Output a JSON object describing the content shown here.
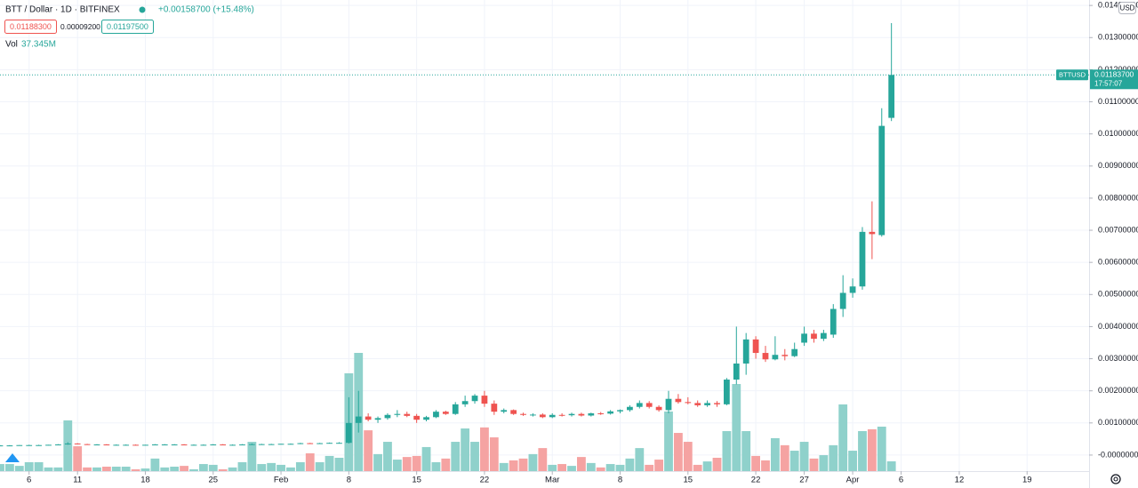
{
  "header": {
    "symbol": "BTT / Dollar · 1D · BITFINEX",
    "change": "+0.00158700 (+15.48%)",
    "bid": "0.01188300",
    "spread": "0.00009200",
    "ask": "0.01197500",
    "volume_label": "Vol",
    "volume_value": "37.345M",
    "currency": "USD"
  },
  "chart_data": {
    "type": "candlestick",
    "up_color": "#26a69a",
    "down_color": "#ef5350",
    "volume_up_color": "#8fd1cb",
    "volume_down_color": "#f5a3a2",
    "grid": true,
    "x": [
      3,
      4,
      5,
      6,
      7,
      8,
      9,
      10,
      11,
      12,
      13,
      14,
      15,
      16,
      17,
      18,
      19,
      20,
      21,
      22,
      23,
      24,
      25,
      26,
      27,
      28,
      29,
      30,
      31,
      32,
      33,
      34,
      35,
      36,
      37,
      38,
      39,
      40,
      41,
      42,
      43,
      44,
      45,
      46,
      47,
      48,
      49,
      50,
      51,
      52,
      53,
      54,
      55,
      56,
      57,
      58,
      59,
      60,
      61,
      62,
      63,
      64,
      65,
      66,
      67,
      68,
      69,
      70,
      71,
      72,
      73,
      74,
      75,
      76,
      77,
      78,
      79,
      80,
      81,
      82,
      83,
      84,
      85,
      86,
      87,
      88,
      89,
      90,
      91,
      92,
      93,
      94,
      95
    ],
    "series": [
      {
        "name": "BTTUSD",
        "open": [
          0.00029,
          0.0003,
          0.0003,
          0.00031,
          0.00031,
          0.00031,
          0.00032,
          0.00033,
          0.00036,
          0.00034,
          0.00033,
          0.00033,
          0.00032,
          0.00032,
          0.00032,
          0.00031,
          0.00032,
          0.00033,
          0.00033,
          0.00033,
          0.00032,
          0.00032,
          0.00032,
          0.00033,
          0.00032,
          0.00032,
          0.00033,
          0.00034,
          0.00034,
          0.00034,
          0.00035,
          0.00035,
          0.00037,
          0.00036,
          0.00037,
          0.00038,
          0.00038,
          0.001,
          0.0012,
          0.0011,
          0.00115,
          0.00125,
          0.00128,
          0.00122,
          0.0011,
          0.00118,
          0.00135,
          0.00128,
          0.00158,
          0.00168,
          0.00185,
          0.0016,
          0.00135,
          0.0014,
          0.00128,
          0.00125,
          0.00126,
          0.00118,
          0.00125,
          0.00124,
          0.00128,
          0.00123,
          0.0013,
          0.00129,
          0.00136,
          0.0014,
          0.0015,
          0.00162,
          0.0015,
          0.0014,
          0.00175,
          0.00165,
          0.00162,
          0.00155,
          0.00162,
          0.00158,
          0.00235,
          0.00285,
          0.0036,
          0.00318,
          0.00298,
          0.00312,
          0.00308,
          0.0035,
          0.00378,
          0.00362,
          0.00375,
          0.00455,
          0.00505,
          0.00525,
          0.00695,
          0.00685,
          0.0105
        ],
        "high": [
          0.00031,
          0.00031,
          0.00031,
          0.00032,
          0.00032,
          0.00032,
          0.00034,
          0.0004,
          0.00037,
          0.00035,
          0.00034,
          0.00034,
          0.00033,
          0.00033,
          0.00033,
          0.00032,
          0.00034,
          0.00034,
          0.00034,
          0.00034,
          0.00033,
          0.00033,
          0.00034,
          0.00034,
          0.00033,
          0.00034,
          0.00036,
          0.00035,
          0.00035,
          0.00035,
          0.00036,
          0.00038,
          0.00038,
          0.00038,
          0.00039,
          0.0004,
          0.0018,
          0.002,
          0.0013,
          0.0012,
          0.0013,
          0.0014,
          0.00135,
          0.00128,
          0.00122,
          0.0014,
          0.00138,
          0.00165,
          0.00185,
          0.0019,
          0.002,
          0.0017,
          0.00145,
          0.00142,
          0.00132,
          0.0013,
          0.0013,
          0.0013,
          0.0013,
          0.00132,
          0.00132,
          0.00132,
          0.00134,
          0.0014,
          0.00142,
          0.00155,
          0.0017,
          0.00168,
          0.00155,
          0.002,
          0.0019,
          0.0018,
          0.0017,
          0.0017,
          0.00168,
          0.0024,
          0.004,
          0.0038,
          0.0037,
          0.0034,
          0.0037,
          0.0033,
          0.0035,
          0.004,
          0.0039,
          0.0039,
          0.0047,
          0.0056,
          0.0055,
          0.0071,
          0.0079,
          0.0108,
          0.01345
        ],
        "low": [
          0.00028,
          0.00029,
          0.00029,
          0.0003,
          0.0003,
          0.0003,
          0.00031,
          0.00032,
          0.00033,
          0.00033,
          0.00032,
          0.00032,
          0.00031,
          0.00031,
          0.00031,
          0.0003,
          0.00031,
          0.00032,
          0.00032,
          0.00032,
          0.00031,
          0.00031,
          0.00031,
          0.00032,
          0.00031,
          0.00031,
          0.00032,
          0.00033,
          0.00033,
          0.00033,
          0.00034,
          0.00034,
          0.00035,
          0.00035,
          0.00036,
          0.00036,
          0.00036,
          0.0007,
          0.00105,
          0.001,
          0.0011,
          0.00118,
          0.00118,
          0.001,
          0.00105,
          0.00115,
          0.00125,
          0.00125,
          0.0015,
          0.0016,
          0.0015,
          0.00125,
          0.0013,
          0.00125,
          0.00122,
          0.0012,
          0.00115,
          0.00115,
          0.0012,
          0.0012,
          0.0012,
          0.0012,
          0.00125,
          0.00126,
          0.0013,
          0.00135,
          0.00145,
          0.00145,
          0.00135,
          0.0013,
          0.0016,
          0.00158,
          0.0015,
          0.0015,
          0.0015,
          0.00155,
          0.0022,
          0.0025,
          0.003,
          0.0029,
          0.00295,
          0.00295,
          0.00305,
          0.0034,
          0.0035,
          0.00355,
          0.00365,
          0.0043,
          0.0049,
          0.00515,
          0.0061,
          0.0068,
          0.0104
        ],
        "close": [
          0.0003,
          0.0003,
          0.00031,
          0.00031,
          0.00031,
          0.00032,
          0.00033,
          0.00036,
          0.00034,
          0.00033,
          0.00033,
          0.00032,
          0.00032,
          0.00032,
          0.00031,
          0.00032,
          0.00033,
          0.00033,
          0.00033,
          0.00032,
          0.00032,
          0.00032,
          0.00033,
          0.00032,
          0.00032,
          0.00033,
          0.00034,
          0.00034,
          0.00034,
          0.00035,
          0.00035,
          0.00037,
          0.00036,
          0.00037,
          0.00038,
          0.00038,
          0.001,
          0.0012,
          0.0011,
          0.00115,
          0.00125,
          0.00128,
          0.00122,
          0.0011,
          0.00118,
          0.00135,
          0.00128,
          0.00158,
          0.00168,
          0.00185,
          0.0016,
          0.00135,
          0.0014,
          0.00128,
          0.00125,
          0.00126,
          0.00118,
          0.00125,
          0.00124,
          0.00128,
          0.00123,
          0.0013,
          0.00129,
          0.00136,
          0.0014,
          0.0015,
          0.00162,
          0.0015,
          0.0014,
          0.00175,
          0.00165,
          0.00162,
          0.00155,
          0.00162,
          0.00158,
          0.00235,
          0.00285,
          0.0036,
          0.00318,
          0.00298,
          0.00312,
          0.00308,
          0.0033,
          0.00378,
          0.00362,
          0.0038,
          0.00455,
          0.00505,
          0.00525,
          0.00695,
          0.00688,
          0.01025,
          0.011837
        ],
        "volume": [
          27,
          27,
          20,
          34,
          34,
          14,
          14,
          194,
          95,
          14,
          14,
          17,
          17,
          17,
          7,
          10,
          48,
          14,
          17,
          20,
          7,
          27,
          24,
          7,
          14,
          34,
          112,
          27,
          31,
          24,
          14,
          34,
          68,
          34,
          58,
          51,
          374,
          452,
          156,
          65,
          112,
          44,
          54,
          58,
          92,
          34,
          48,
          112,
          163,
          112,
          167,
          129,
          31,
          41,
          48,
          65,
          88,
          24,
          27,
          20,
          54,
          31,
          14,
          27,
          24,
          48,
          88,
          24,
          44,
          228,
          146,
          112,
          24,
          37,
          51,
          153,
          333,
          153,
          58,
          41,
          126,
          99,
          78,
          112,
          48,
          61,
          99,
          255,
          78,
          153,
          160,
          170,
          37.345
        ]
      }
    ],
    "price_tag": {
      "label": "0.01183700",
      "time": "17:57:07"
    },
    "xlim": [
      3,
      115.4
    ],
    "xticks": [
      {
        "value": 6,
        "label": "6"
      },
      {
        "value": 11,
        "label": "11"
      },
      {
        "value": 18,
        "label": "18"
      },
      {
        "value": 25,
        "label": "25"
      },
      {
        "value": 32,
        "label": "Feb"
      },
      {
        "value": 39,
        "label": "8"
      },
      {
        "value": 46,
        "label": "15"
      },
      {
        "value": 53,
        "label": "22"
      },
      {
        "value": 60,
        "label": "Mar"
      },
      {
        "value": 67,
        "label": "8"
      },
      {
        "value": 74,
        "label": "15"
      },
      {
        "value": 81,
        "label": "22"
      },
      {
        "value": 86,
        "label": "27"
      },
      {
        "value": 91,
        "label": "Apr"
      },
      {
        "value": 96,
        "label": "6"
      },
      {
        "value": 102,
        "label": "12"
      },
      {
        "value": 109,
        "label": "19"
      }
    ],
    "ylim": [
      -0.0005,
      0.01417
    ],
    "yticks": [
      {
        "value": 0,
        "label": "-0.00000000"
      },
      {
        "value": 0.001,
        "label": "0.00100000"
      },
      {
        "value": 0.002,
        "label": "0.00200000"
      },
      {
        "value": 0.003,
        "label": "0.00300000"
      },
      {
        "value": 0.004,
        "label": "0.00400000"
      },
      {
        "value": 0.005,
        "label": "0.00500000"
      },
      {
        "value": 0.006,
        "label": "0.00600000"
      },
      {
        "value": 0.007,
        "label": "0.00700000"
      },
      {
        "value": 0.008,
        "label": "0.00800000"
      },
      {
        "value": 0.009,
        "label": "0.00900000"
      },
      {
        "value": 0.01,
        "label": "0.01000000"
      },
      {
        "value": 0.011,
        "label": "0.01100000"
      },
      {
        "value": 0.012,
        "label": "0.01200000"
      },
      {
        "value": 0.013,
        "label": "0.01300000"
      },
      {
        "value": 0.014,
        "label": "0.01400000"
      }
    ]
  }
}
